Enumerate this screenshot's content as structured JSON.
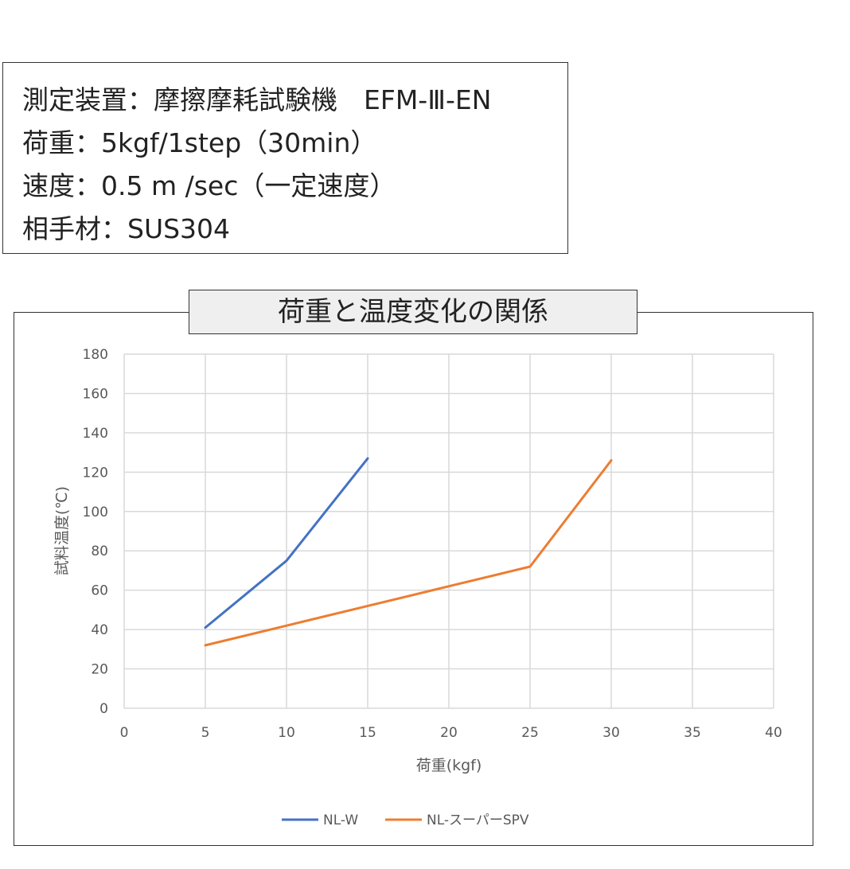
{
  "info": {
    "lines": [
      "測定装置：摩擦摩耗試験機　EFM-Ⅲ-EN",
      "荷重：5kgf/1step（30min）",
      "速度：0.5 m /sec（一定速度）",
      "相手材：SUS304"
    ]
  },
  "chart_data": {
    "type": "line",
    "title": "荷重と温度変化の関係",
    "xlabel": "荷重(kgf)",
    "ylabel": "試料温度(℃)",
    "xlim": [
      0,
      40
    ],
    "ylim": [
      0,
      180
    ],
    "xticks": [
      0,
      5,
      10,
      15,
      20,
      25,
      30,
      35,
      40
    ],
    "yticks": [
      0,
      20,
      40,
      60,
      80,
      100,
      120,
      140,
      160,
      180
    ],
    "grid": true,
    "legend_position": "bottom",
    "series": [
      {
        "name": "NL-W",
        "color": "#4472C4",
        "x": [
          5,
          10,
          15
        ],
        "y": [
          41,
          75,
          127
        ]
      },
      {
        "name": "NL-スーパーSPV",
        "color": "#ED7D31",
        "x": [
          5,
          10,
          15,
          20,
          25,
          30
        ],
        "y": [
          32,
          42,
          52,
          62,
          72,
          126
        ]
      }
    ]
  }
}
